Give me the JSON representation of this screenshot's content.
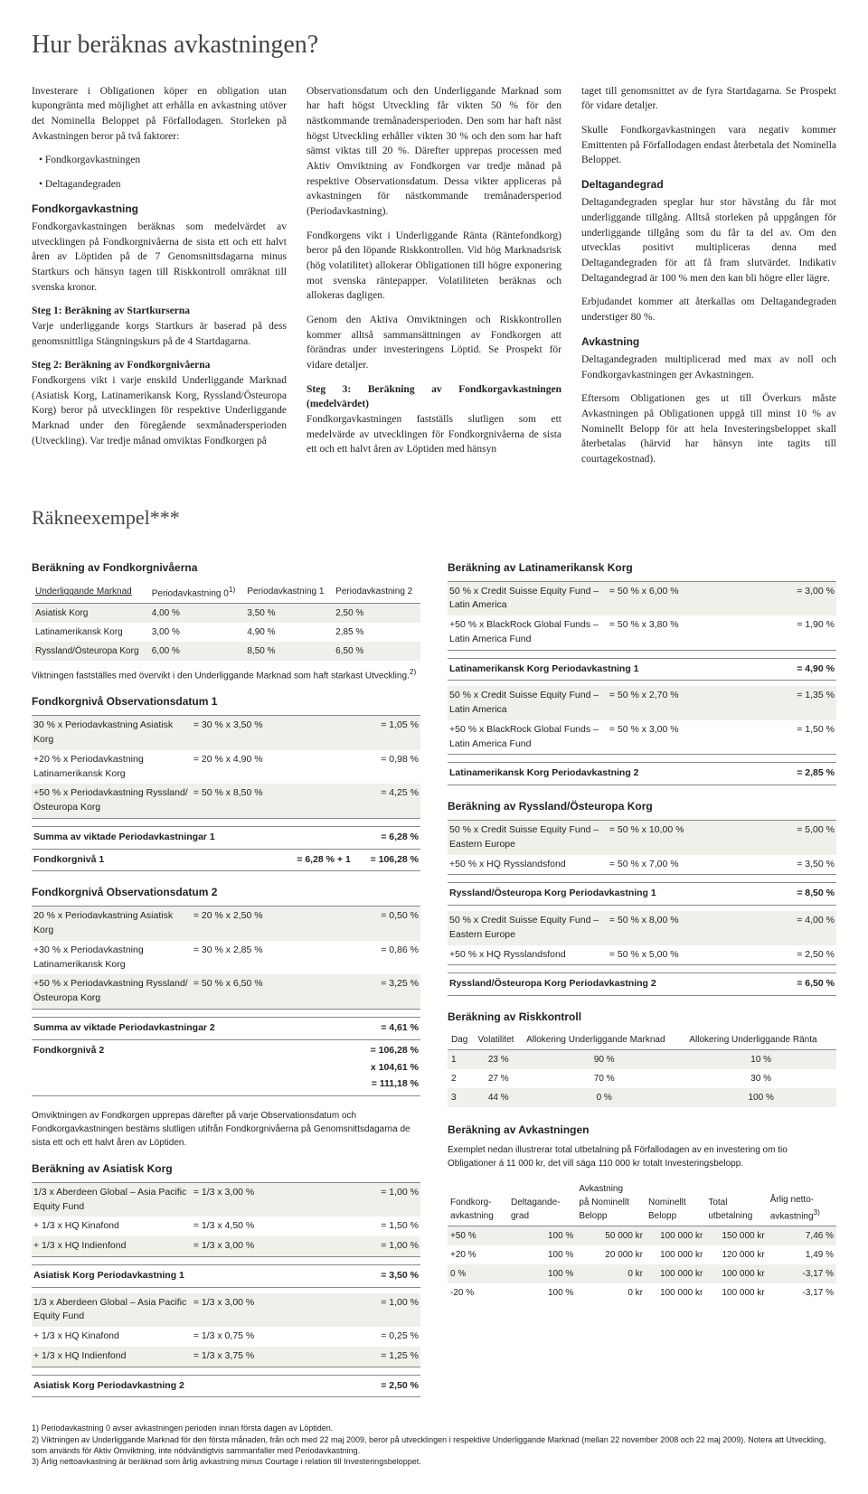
{
  "title": "Hur beräknas avkastningen?",
  "col1": {
    "p1": "Investerare i Obligationen köper en obligation utan kupongränta med möjlighet att erhålla en avkastning utöver det Nominella Beloppet på Förfallodagen. Storleken på Avkastningen beror på två faktorer:",
    "b1": "• Fondkorgavkastningen",
    "b2": "• Deltagandegraden",
    "h1": "Fondkorgavkastning",
    "p2": "Fondkorgavkastningen beräknas som medelvärdet av utvecklingen på Fondkorgnivåerna de sista ett och ett halvt åren av Löptiden på de 7 Genomsnittsdagarna minus Startkurs och hänsyn tagen till Riskkontroll omräknat till svenska kronor.",
    "s1t": "Steg 1: Beräkning av Startkurserna",
    "s1p": "Varje underliggande korgs Startkurs är baserad på dess genomsnittliga Stängningskurs på de 4 Startdagarna.",
    "s2t": "Steg 2: Beräkning av Fondkorgnivåerna",
    "s2p": "Fondkorgens vikt i varje enskild Underliggande Marknad (Asiatisk Korg, Latinamerikansk Korg, Ryssland/Östeuropa Korg) beror på utvecklingen för respektive Underliggande Marknad under den föregående sexmånadersperioden (Utveckling). Var tredje månad omviktas Fondkorgen på"
  },
  "col2": {
    "p1": "Observationsdatum och den Underliggande Marknad som har haft högst Utveckling får vikten 50 % för den nästkommande tremånadersperioden. Den som har haft näst högst Utveckling erhåller vikten 30 % och den som har haft sämst viktas till 20 %. Därefter upprepas processen med Aktiv Omviktning av Fondkorgen var tredje månad på respektive Observationsdatum. Dessa vikter appliceras på avkastningen för nästkommande tremånadersperiod (Periodavkastning).",
    "p2": "Fondkorgens vikt i Underliggande Ränta (Räntefondkorg) beror på den löpande Riskkontrollen. Vid hög Marknadsrisk (hög volatilitet) allokerar Obligationen till högre exponering mot svenska räntepapper. Volatiliteten beräknas och allokeras dagligen.",
    "p3": "Genom den Aktiva Omviktningen och Riskkontrollen kommer alltså sammansättningen av Fondkorgen att förändras under investeringens Löptid. Se Prospekt för vidare detaljer.",
    "s3t": "Steg 3: Beräkning av Fondkorgavkastningen (medelvärdet)",
    "s3p": "Fondkorgavkastningen fastställs slutligen som ett medelvärde av utvecklingen för Fondkorgnivåerna de sista ett och ett halvt åren av Löptiden med hänsyn"
  },
  "col3": {
    "p1": "taget till genomsnittet av de fyra Startdagarna. Se Prospekt för vidare detaljer.",
    "p2": "Skulle Fondkorgavkastningen vara negativ kommer Emittenten på Förfallodagen endast återbetala det Nominella Beloppet.",
    "h1": "Deltagandegrad",
    "p3": "Deltagandegraden speglar hur stor hävstång du får mot underliggande tillgång. Alltså storleken på uppgången för underliggande tillgång som du får ta del av. Om den utvecklas positivt multipliceras denna med Deltagandegraden för att få fram slutvärdet. Indikativ Deltagandegrad är 100 % men den kan bli högre eller lägre.",
    "p4": "Erbjudandet kommer att återkallas om Deltagandegraden understiger 80 %.",
    "h2": "Avkastning",
    "p5": "Deltagandegraden multiplicerad med max av noll och Fondkorgavkastningen ger Avkastningen.",
    "p6": "Eftersom Obligationen ges ut till Överkurs måste Avkastningen på Obligationen uppgå till minst 10 % av Nominellt Belopp för att hela Investeringsbeloppet skall återbetalas (härvid har hänsyn inte tagits till courtagekostnad)."
  },
  "example_title": "Räkneexempel***",
  "left": {
    "h_fondniv": "Beräkning av Fondkorgnivåerna",
    "th1": "Underliggande Marknad",
    "th2": "Periodavkastning 0",
    "th2_sup": "1)",
    "th3": "Periodavkastning 1",
    "th4": "Periodavkastning 2",
    "rows": [
      [
        "Asiatisk Korg",
        "4,00 %",
        "3,50 %",
        "2,50 %"
      ],
      [
        "Latinamerikansk Korg",
        "3,00 %",
        "4,90 %",
        "2,85 %"
      ],
      [
        "Ryssland/Östeuropa Korg",
        "6,00 %",
        "8,50 %",
        "6,50 %"
      ]
    ],
    "caption": "Viktningen fastställes med övervikt i den Underliggande Marknad som haft starkast Utveckling.",
    "caption_sup": "2)",
    "h_obs1": "Fondkorgnivå Observationsdatum 1",
    "obs1": [
      {
        "l": "   30 % x Periodavkastning Asiatisk Korg",
        "m": "= 30 % x 3,50 %",
        "r": "= 1,05 %"
      },
      {
        "l": "+20 % x Periodavkastning Latinamerikansk Korg",
        "m": "= 20 % x 4,90 %",
        "r": "= 0,98 %"
      },
      {
        "l": "+50 % x Periodavkastning Ryssland/Östeuropa Korg",
        "m": "= 50 % x 8,50 %",
        "r": "= 4,25 %"
      }
    ],
    "obs1_sum1_l": "Summa av viktade Periodavkastningar 1",
    "obs1_sum1_r": "=    6,28 %",
    "obs1_sum2_l": "Fondkorgnivå 1",
    "obs1_sum2_m": "= 6,28 % + 1",
    "obs1_sum2_r": "= 106,28 %",
    "h_obs2": "Fondkorgnivå Observationsdatum 2",
    "obs2": [
      {
        "l": "   20 % x Periodavkastning Asiatisk Korg",
        "m": "= 20 % x 2,50 %",
        "r": "= 0,50 %"
      },
      {
        "l": "+30 % x Periodavkastning Latinamerikansk Korg",
        "m": "= 30 % x 2,85 %",
        "r": "= 0,86 %"
      },
      {
        "l": "+50 % x Periodavkastning Ryssland/Östeuropa Korg",
        "m": "= 50 % x 6,50 %",
        "r": "= 3,25 %"
      }
    ],
    "obs2_sum1_l": "Summa av viktade Periodavkastningar 2",
    "obs2_sum1_r": "=    4,61 %",
    "obs2_sum2_l": "Fondkorgnivå 2",
    "obs2_sum2_r1": "= 106,28 %",
    "obs2_sum2_r2": "x 104,61 %",
    "obs2_sum2_r3": "= 111,18 %",
    "caption2": "Omviktningen av Fondkorgen upprepas därefter på varje Observationsdatum och Fondkorgavkastningen bestäms slutligen utifrån Fondkorgnivåerna på Genomsnittsdagarna de sista ett och ett halvt åren av Löptiden.",
    "h_asia": "Beräkning av Asiatisk Korg",
    "asia1": [
      {
        "l": "   1/3 x Aberdeen Global – Asia Pacific Equity Fund",
        "m": "=    1/3   x   3,00 %",
        "r": "= 1,00 %"
      },
      {
        "l": "+ 1/3 x HQ Kinafond",
        "m": "=    1/3   x   4,50 %",
        "r": "= 1,50 %"
      },
      {
        "l": "+ 1/3 x HQ Indienfond",
        "m": "=    1/3   x   3,00 %",
        "r": "= 1,00 %"
      }
    ],
    "asia1_sum": "Asiatisk Korg Periodavkastning 1",
    "asia1_sum_r": "= 3,50 %",
    "asia2": [
      {
        "l": "   1/3 x Aberdeen Global – Asia Pacific Equity Fund",
        "m": "=    1/3   x   3,00 %",
        "r": "= 1,00 %"
      },
      {
        "l": "+ 1/3 x HQ Kinafond",
        "m": "=    1/3   x   0,75 %",
        "r": "= 0,25 %"
      },
      {
        "l": "+ 1/3 x HQ Indienfond",
        "m": "=    1/3   x   3,75 %",
        "r": "= 1,25 %"
      }
    ],
    "asia2_sum": "Asiatisk Korg Periodavkastning 2",
    "asia2_sum_r": "= 2,50 %"
  },
  "right": {
    "h_lat": "Beräkning av Latinamerikansk Korg",
    "lat1": [
      {
        "l": "   50 % x Credit Suisse Equity Fund – Latin America",
        "m": "= 50 %    x    6,00 %",
        "r": "= 3,00 %"
      },
      {
        "l": "+50 % x BlackRock Global Funds – Latin America Fund",
        "m": "= 50 %    x    3,80 %",
        "r": "= 1,90 %"
      }
    ],
    "lat1_sum": "Latinamerikansk Korg Periodavkastning 1",
    "lat1_sum_r": "= 4,90 %",
    "lat2": [
      {
        "l": "   50 % x Credit Suisse Equity Fund – Latin America",
        "m": "= 50 %    x    2,70 %",
        "r": "= 1,35 %"
      },
      {
        "l": "+50 % x BlackRock Global Funds – Latin America Fund",
        "m": "= 50 %    x    3,00 %",
        "r": "= 1,50 %"
      }
    ],
    "lat2_sum": "Latinamerikansk Korg Periodavkastning 2",
    "lat2_sum_r": "= 2,85 %",
    "h_rus": "Beräkning av Ryssland/Östeuropa Korg",
    "rus1": [
      {
        "l": "   50 % x Credit Suisse Equity Fund – Eastern Europe",
        "m": "= 50 %    x  10,00 %",
        "r": "= 5,00 %"
      },
      {
        "l": "+50 % x HQ Rysslandsfond",
        "m": "= 50 %    x    7,00 %",
        "r": "= 3,50 %"
      }
    ],
    "rus1_sum": "Ryssland/Östeuropa Korg Periodavkastning 1",
    "rus1_sum_r": "= 8,50 %",
    "rus2": [
      {
        "l": "   50 % x Credit Suisse Equity Fund – Eastern Europe",
        "m": "= 50 %    x    8,00 %",
        "r": "= 4,00 %"
      },
      {
        "l": "+50 % x HQ Rysslandsfond",
        "m": "= 50 %    x    5,00 %",
        "r": "= 2,50 %"
      }
    ],
    "rus2_sum": "Ryssland/Östeuropa Korg Periodavkastning 2",
    "rus2_sum_r": "= 6,50 %",
    "h_risk": "Beräkning av Riskkontroll",
    "risk_th": [
      "Dag",
      "Volatilitet",
      "Allokering Underliggande Marknad",
      "Allokering Underliggande Ränta"
    ],
    "risk_rows": [
      [
        "1",
        "23 %",
        "90 %",
        "10 %"
      ],
      [
        "2",
        "27 %",
        "70 %",
        "30 %"
      ],
      [
        "3",
        "44 %",
        "0 %",
        "100 %"
      ]
    ],
    "h_avk": "Beräkning av Avkastningen",
    "avk_cap": "Exemplet nedan illustrerar total utbetalning på Förfallodagen av en investering om tio Obligationer á 11 000 kr, det vill säga 110 000 kr totalt Investeringsbelopp.",
    "avk_th": [
      "Fondkorg-\navkastning",
      "Deltagande-\ngrad",
      "Avkastning\npå Nominellt\nBelopp",
      "Nominellt\nBelopp",
      "Total\nutbetalning",
      "Årlig netto-\navkastning"
    ],
    "avk_th_sup": "3)",
    "avk_rows": [
      [
        "+50 %",
        "100 %",
        "50 000 kr",
        "100 000 kr",
        "150 000 kr",
        "7,46 %"
      ],
      [
        "+20 %",
        "100 %",
        "20 000 kr",
        "100 000 kr",
        "120 000 kr",
        "1,49 %"
      ],
      [
        "0 %",
        "100 %",
        "0 kr",
        "100 000 kr",
        "100 000 kr",
        "-3,17 %"
      ],
      [
        "-20 %",
        "100 %",
        "0 kr",
        "100 000 kr",
        "100 000 kr",
        "-3,17 %"
      ]
    ]
  },
  "footnotes": {
    "f1": "1) Periodavkastning 0 avser avkastningen perioden innan första dagen av Löptiden.",
    "f2": "2) Viktningen av Underliggande Marknad för den första månaden, från och med 22 maj 2009, beror på utvecklingen i respektive Underliggande Marknad (mellan 22 november 2008 och 22 maj 2009). Notera att Utveckling, som används för Aktiv Omviktning, inte nödvändigtvis sammanfaller med Periodavkastning.",
    "f3": "3) Årlig nettoavkastning är beräknad som årlig avkastning minus Courtage i relation till Investeringsbeloppet."
  }
}
